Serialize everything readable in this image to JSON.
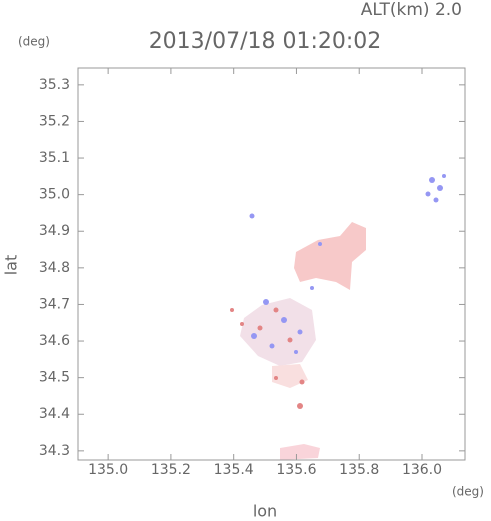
{
  "chart_data": {
    "type": "scatter",
    "title": "2013/07/18 01:20:02",
    "subtitle": "ALT(km)  2.0",
    "y_unit": "(deg)",
    "x_unit": "(deg)",
    "y_label": "lat",
    "x_label": "lon",
    "xlim": [
      134.904,
      136.137
    ],
    "ylim": [
      34.275,
      35.346
    ],
    "xticks": [
      {
        "value": 135,
        "label": "135.0"
      },
      135.2,
      135.4,
      135.6,
      135.8,
      {
        "value": 136,
        "label": "136.0"
      }
    ],
    "yticks": [
      34.3,
      34.4,
      34.5,
      34.6,
      34.7,
      34.8,
      34.9,
      {
        "value": 35,
        "label": "35.0"
      },
      35.1,
      35.2,
      35.3
    ]
  }
}
